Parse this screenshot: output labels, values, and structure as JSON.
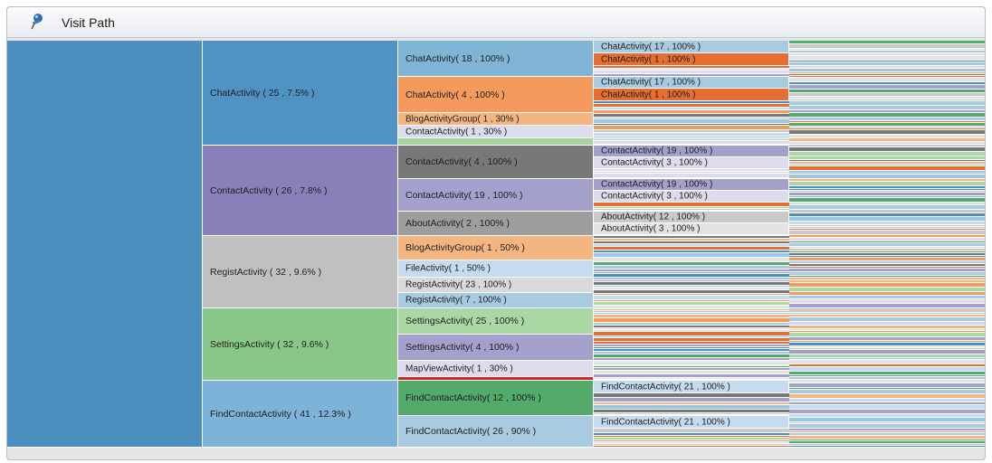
{
  "header": {
    "title": "Visit Path",
    "icon": "pushpin-icon"
  },
  "colors": {
    "root": "#4e8fc1",
    "chat_l1": "#5192c4",
    "contact_l1": "#8880b8",
    "regist_l1": "#c0c0c0",
    "settings_l1": "#88c788",
    "findcontact_l1": "#7db3d8"
  },
  "level1": [
    {
      "label": "ChatActivity ( 25 , 7.5% )"
    },
    {
      "label": "ContactActivity ( 26 , 7.8% )"
    },
    {
      "label": "RegistActivity ( 32 , 9.6% )"
    },
    {
      "label": "SettingsActivity ( 32 , 9.6% )"
    },
    {
      "label": "FindContactActivity ( 41 , 12.3% )"
    }
  ],
  "level2": [
    {
      "label": "ChatActivity( 18 , 100% )"
    },
    {
      "label": "ChatActivity( 4 , 100% )"
    },
    {
      "label": "BlogActivityGroup( 1 , 30% )"
    },
    {
      "label": "ContactActivity( 1 , 30% )"
    },
    {
      "label": "ContactActivity( 4 , 100% )"
    },
    {
      "label": "ContactActivity( 19 , 100% )"
    },
    {
      "label": "AboutActivity( 2 , 100% )"
    },
    {
      "label": "BlogActivityGroup( 1 , 50% )"
    },
    {
      "label": "FileActivity( 1 , 50% )"
    },
    {
      "label": "RegistActivity( 23 , 100% )"
    },
    {
      "label": "RegistActivity( 7 , 100% )"
    },
    {
      "label": "SettingsActivity( 25 , 100% )"
    },
    {
      "label": "SettingsActivity( 4 , 100% )"
    },
    {
      "label": "MapViewActivity( 1 , 30% )"
    },
    {
      "label": "FindContactActivity( 12 , 100% )"
    },
    {
      "label": "FindContactActivity( 26 , 90% )"
    }
  ],
  "level3": [
    {
      "label": "ChatActivity( 17 , 100% )"
    },
    {
      "label": "ChatActivity( 1 , 100% )"
    },
    {
      "label": "ChatActivity( 17 , 100% )"
    },
    {
      "label": "ChatActivity( 1 , 100% )"
    },
    {
      "label": "ContactActivity( 19 , 100% )"
    },
    {
      "label": "ContactActivity( 3 , 100% )"
    },
    {
      "label": "ContactActivity( 19 , 100% )"
    },
    {
      "label": "ContactActivity( 3 , 100% )"
    },
    {
      "label": "AboutActivity( 12 , 100% )"
    },
    {
      "label": "AboutActivity( 3 , 100% )"
    },
    {
      "label": "FindContactActivity( 21 , 100% )"
    },
    {
      "label": "FindContactActivity( 21 , 100% )"
    }
  ]
}
